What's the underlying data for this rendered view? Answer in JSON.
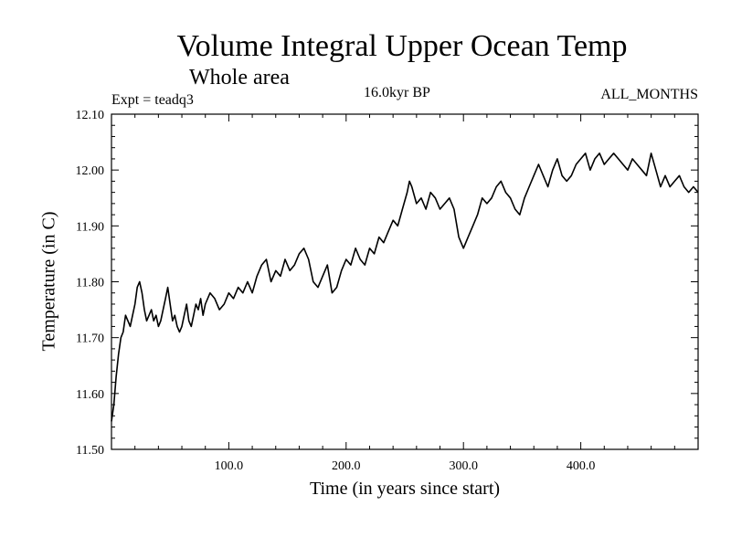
{
  "chart_data": {
    "type": "line",
    "title": "Volume Integral Upper Ocean Temp",
    "subtitle": "Whole area",
    "annotations": {
      "experiment": "Expt = teadq3",
      "period": "16.0kyr BP",
      "months": "ALL_MONTHS"
    },
    "xlabel": "Time (in years since start)",
    "ylabel": "Temperature (in C)",
    "xlim": [
      0,
      500
    ],
    "ylim": [
      11.5,
      12.1
    ],
    "xticks": [
      100,
      200,
      300,
      400
    ],
    "xtick_labels": [
      "100.0",
      "200.0",
      "300.0",
      "400.0"
    ],
    "yticks": [
      11.5,
      11.6,
      11.7,
      11.8,
      11.9,
      12.0,
      12.1
    ],
    "ytick_labels": [
      "11.50",
      "11.60",
      "11.70",
      "11.80",
      "11.90",
      "12.00",
      "12.10"
    ],
    "grid": false,
    "series": [
      {
        "name": "Temperature",
        "x": [
          0,
          2,
          4,
          6,
          8,
          10,
          12,
          14,
          16,
          18,
          20,
          22,
          24,
          26,
          28,
          30,
          32,
          34,
          36,
          38,
          40,
          42,
          44,
          46,
          48,
          50,
          52,
          54,
          56,
          58,
          60,
          62,
          64,
          66,
          68,
          70,
          72,
          74,
          76,
          78,
          80,
          84,
          88,
          92,
          96,
          100,
          104,
          108,
          112,
          116,
          120,
          124,
          128,
          132,
          136,
          140,
          144,
          148,
          152,
          156,
          160,
          164,
          168,
          172,
          176,
          180,
          184,
          188,
          192,
          196,
          200,
          204,
          208,
          212,
          216,
          220,
          224,
          228,
          232,
          236,
          240,
          244,
          248,
          252,
          254,
          256,
          260,
          264,
          268,
          272,
          276,
          280,
          284,
          288,
          292,
          296,
          300,
          304,
          308,
          312,
          316,
          320,
          324,
          328,
          332,
          336,
          340,
          344,
          348,
          352,
          356,
          360,
          364,
          368,
          372,
          376,
          380,
          384,
          388,
          392,
          396,
          400,
          404,
          408,
          412,
          416,
          420,
          424,
          428,
          432,
          436,
          440,
          444,
          448,
          452,
          456,
          460,
          464,
          468,
          472,
          476,
          480,
          484,
          488,
          492,
          496,
          500
        ],
        "values": [
          11.55,
          11.58,
          11.63,
          11.67,
          11.7,
          11.71,
          11.74,
          11.73,
          11.72,
          11.74,
          11.76,
          11.79,
          11.8,
          11.78,
          11.75,
          11.73,
          11.74,
          11.75,
          11.73,
          11.74,
          11.72,
          11.73,
          11.75,
          11.77,
          11.79,
          11.76,
          11.73,
          11.74,
          11.72,
          11.71,
          11.72,
          11.74,
          11.76,
          11.73,
          11.72,
          11.74,
          11.76,
          11.75,
          11.77,
          11.74,
          11.76,
          11.78,
          11.77,
          11.75,
          11.76,
          11.78,
          11.77,
          11.79,
          11.78,
          11.8,
          11.78,
          11.81,
          11.83,
          11.84,
          11.8,
          11.82,
          11.81,
          11.84,
          11.82,
          11.83,
          11.85,
          11.86,
          11.84,
          11.8,
          11.79,
          11.81,
          11.83,
          11.78,
          11.79,
          11.82,
          11.84,
          11.83,
          11.86,
          11.84,
          11.83,
          11.86,
          11.85,
          11.88,
          11.87,
          11.89,
          11.91,
          11.9,
          11.93,
          11.96,
          11.98,
          11.97,
          11.94,
          11.95,
          11.93,
          11.96,
          11.95,
          11.93,
          11.94,
          11.95,
          11.93,
          11.88,
          11.86,
          11.88,
          11.9,
          11.92,
          11.95,
          11.94,
          11.95,
          11.97,
          11.98,
          11.96,
          11.95,
          11.93,
          11.92,
          11.95,
          11.97,
          11.99,
          12.01,
          11.99,
          11.97,
          12.0,
          12.02,
          11.99,
          11.98,
          11.99,
          12.01,
          12.02,
          12.03,
          12.0,
          12.02,
          12.03,
          12.01,
          12.02,
          12.03,
          12.02,
          12.01,
          12.0,
          12.02,
          12.01,
          12.0,
          11.99,
          12.03,
          12.0,
          11.97,
          11.99,
          11.97,
          11.98,
          11.99,
          11.97,
          11.96,
          11.97,
          11.96
        ]
      }
    ]
  }
}
